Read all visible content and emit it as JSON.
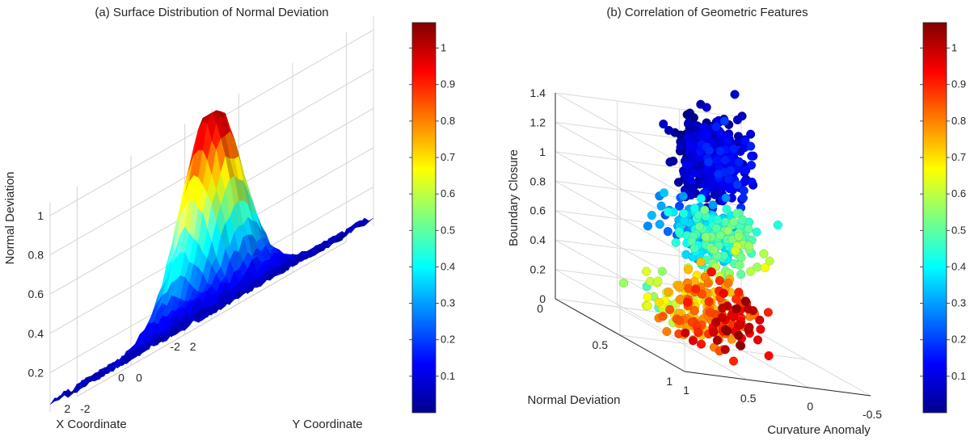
{
  "colormap": "jet",
  "chart_data": [
    {
      "type": "surface",
      "title": "(a) Surface Distribution of Normal Deviation",
      "xlabel": "X Coordinate",
      "ylabel": "Y Coordinate",
      "zlabel": "Normal Deviation",
      "xlim": [
        -3,
        3
      ],
      "ylim": [
        -3,
        3
      ],
      "zlim": [
        0,
        1.07
      ],
      "x_ticks": [
        -2,
        0,
        2
      ],
      "y_ticks": [
        -2,
        0,
        2
      ],
      "z_ticks": [
        0.2,
        0.4,
        0.6,
        0.8,
        1
      ],
      "surface": {
        "function": "gaussian",
        "peak": 1.05,
        "sigma": 0.8,
        "noise": 0.05
      },
      "grid": true,
      "colorbar": {
        "min": 0,
        "max": 1.07,
        "ticks": [
          0.1,
          0.2,
          0.3,
          0.4,
          0.5,
          0.6,
          0.7,
          0.8,
          0.9,
          1
        ]
      }
    },
    {
      "type": "scatter3d",
      "title": "(b) Correlation of Geometric Features",
      "xlabel": "Normal Deviation",
      "ylabel": "Curvature Anomaly",
      "zlabel": "Boundary Closure",
      "xlim": [
        0,
        1
      ],
      "ylim": [
        -0.5,
        1
      ],
      "zlim": [
        0,
        1.4
      ],
      "x_ticks": [
        0,
        0.5,
        1
      ],
      "y_ticks": [
        -0.5,
        0,
        0.5,
        1
      ],
      "z_ticks": [
        0,
        0.2,
        0.4,
        0.6,
        0.8,
        1,
        1.2,
        1.4
      ],
      "color_by": "Normal Deviation",
      "clusters": [
        {
          "normal_deviation_range": [
            0.0,
            0.15
          ],
          "curvature_anomaly_range": [
            -0.4,
            0.0
          ],
          "boundary_closure_range": [
            0.9,
            1.35
          ]
        },
        {
          "normal_deviation_range": [
            0.25,
            0.55
          ],
          "curvature_anomaly_range": [
            -0.1,
            0.4
          ],
          "boundary_closure_range": [
            0.55,
            0.9
          ]
        },
        {
          "normal_deviation_range": [
            0.6,
            1.0
          ],
          "curvature_anomaly_range": [
            0.3,
            0.9
          ],
          "boundary_closure_range": [
            0.15,
            0.55
          ]
        }
      ],
      "grid": true,
      "colorbar": {
        "min": 0,
        "max": 1.07,
        "ticks": [
          0.1,
          0.2,
          0.3,
          0.4,
          0.5,
          0.6,
          0.7,
          0.8,
          0.9,
          1
        ]
      }
    }
  ]
}
